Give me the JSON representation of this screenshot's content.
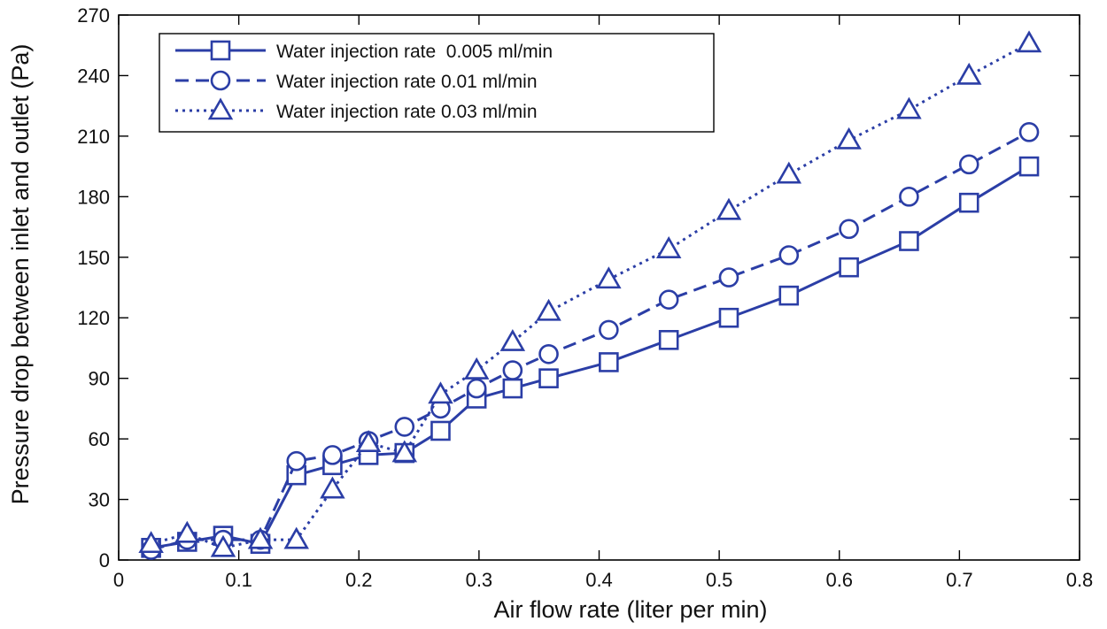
{
  "chart_data": {
    "type": "line",
    "title": "",
    "xlabel": "Air flow rate (liter per min)",
    "ylabel": "Pressure drop between inlet and outlet (Pa)",
    "xlim": [
      0,
      0.8
    ],
    "ylim": [
      0,
      270
    ],
    "xticks": [
      0,
      0.1,
      0.2,
      0.3,
      0.4,
      0.5,
      0.6,
      0.7,
      0.8
    ],
    "xtick_labels": [
      "0",
      "0.1",
      "0.2",
      "0.3",
      "0.4",
      "0.5",
      "0.6",
      "0.7",
      "0.8"
    ],
    "yticks": [
      0,
      30,
      60,
      90,
      120,
      150,
      180,
      210,
      240,
      270
    ],
    "ytick_labels": [
      "0",
      "30",
      "60",
      "90",
      "120",
      "150",
      "180",
      "210",
      "240",
      "270"
    ],
    "grid": false,
    "legend_position": "top-left",
    "series_color": "#2b3ea6",
    "series": [
      {
        "name": "Water injection rate  0.005 ml/min",
        "marker": "square",
        "linestyle": "solid",
        "x": [
          0.027,
          0.057,
          0.087,
          0.118,
          0.148,
          0.178,
          0.208,
          0.238,
          0.268,
          0.298,
          0.328,
          0.358,
          0.408,
          0.458,
          0.508,
          0.558,
          0.608,
          0.658,
          0.708,
          0.758
        ],
        "y": [
          6,
          9,
          12,
          8,
          42,
          47,
          52,
          53,
          64,
          80,
          85,
          90,
          98,
          109,
          120,
          131,
          145,
          158,
          177,
          195
        ]
      },
      {
        "name": "Water injection rate 0.01 ml/min",
        "marker": "circle",
        "linestyle": "dashed",
        "x": [
          0.027,
          0.057,
          0.087,
          0.118,
          0.148,
          0.178,
          0.208,
          0.238,
          0.268,
          0.298,
          0.328,
          0.358,
          0.408,
          0.458,
          0.508,
          0.558,
          0.608,
          0.658,
          0.708,
          0.758
        ],
        "y": [
          5,
          10,
          10,
          10,
          49,
          52,
          59,
          66,
          75,
          85,
          94,
          102,
          114,
          129,
          140,
          151,
          164,
          180,
          196,
          212
        ]
      },
      {
        "name": "Water injection rate 0.03 ml/min",
        "marker": "triangle",
        "linestyle": "dotted",
        "x": [
          0.027,
          0.057,
          0.087,
          0.118,
          0.148,
          0.178,
          0.208,
          0.238,
          0.268,
          0.298,
          0.328,
          0.358,
          0.408,
          0.458,
          0.508,
          0.558,
          0.608,
          0.658,
          0.708,
          0.758
        ],
        "y": [
          8,
          13,
          6,
          10,
          10,
          35,
          58,
          53,
          82,
          94,
          108,
          123,
          139,
          154,
          173,
          191,
          208,
          223,
          240,
          256
        ]
      }
    ]
  }
}
